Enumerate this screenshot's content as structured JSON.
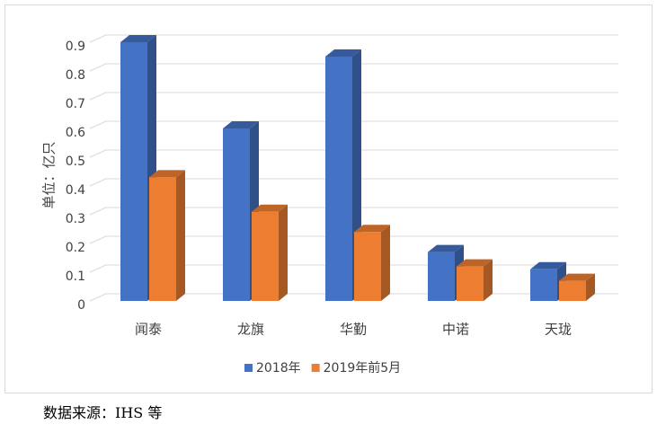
{
  "chart_data": {
    "type": "bar3d",
    "y_label": "单位：亿只",
    "categories": [
      "闻泰",
      "龙旗",
      "华勤",
      "中诺",
      "天珑"
    ],
    "series": [
      {
        "name": "2018年",
        "color": "#4472c4",
        "values": [
          0.9,
          0.6,
          0.85,
          0.17,
          0.11
        ]
      },
      {
        "name": "2019年前5月",
        "color": "#ed7d31",
        "values": [
          0.43,
          0.31,
          0.24,
          0.12,
          0.07
        ]
      }
    ],
    "ylim": [
      0,
      0.9
    ],
    "yticks": [
      0,
      0.1,
      0.2,
      0.3,
      0.4,
      0.5,
      0.6,
      0.7,
      0.8,
      0.9
    ],
    "grid": true
  },
  "source": "数据来源：IHS 等"
}
